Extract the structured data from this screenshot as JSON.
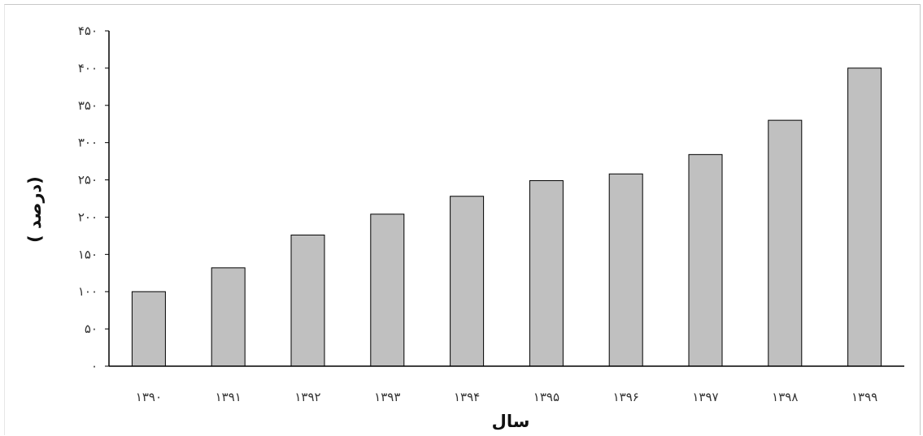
{
  "chart_data": {
    "type": "bar",
    "categories": [
      "۱۳۹۰",
      "۱۳۹۱",
      "۱۳۹۲",
      "۱۳۹۳",
      "۱۳۹۴",
      "۱۳۹۵",
      "۱۳۹۶",
      "۱۳۹۷",
      "۱۳۹۸",
      "۱۳۹۹"
    ],
    "values": [
      100,
      132,
      176,
      204,
      228,
      249,
      258,
      284,
      330,
      400
    ],
    "title": "",
    "xlabel": "سال",
    "ylabel": "( درصد)",
    "ylim": [
      0,
      450
    ],
    "yticks": [
      0,
      50,
      100,
      150,
      200,
      250,
      300,
      350,
      400,
      450
    ],
    "ytick_labels": [
      "۰",
      "۵۰",
      "۱۰۰",
      "۱۵۰",
      "۲۰۰",
      "۲۵۰",
      "۳۰۰",
      "۳۵۰",
      "۴۰۰",
      "۴۵۰"
    ],
    "grid": false,
    "legend": "none",
    "bar_color": "#c0c0c0",
    "bar_edge_color": "#000000"
  }
}
